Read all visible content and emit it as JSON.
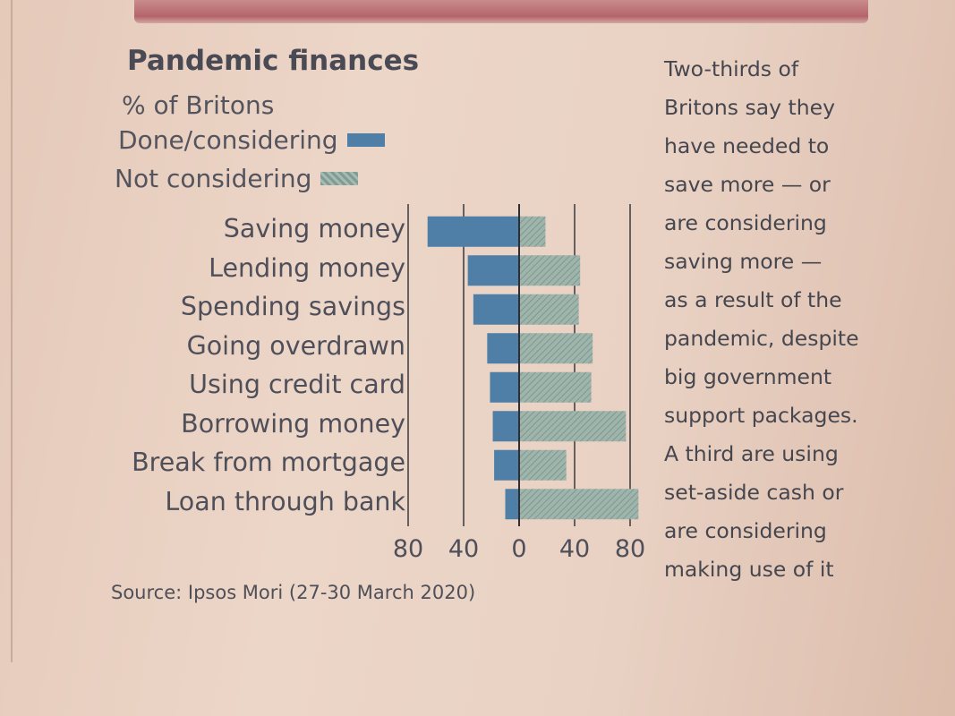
{
  "header": {
    "title": "Pandemic finances",
    "subtitle": "% of Britons"
  },
  "legend": {
    "done": "Done/considering",
    "not": "Not considering"
  },
  "source": "Source: Ipsos Mori (27-30 March 2020)",
  "note": "Two-thirds of\nBritons say they\nhave needed to\nsave more — or\nare considering\nsaving more —\nas a result of the\npandemic, despite\nbig government\nsupport packages.\nA third are using\nset-aside cash or\nare considering\nmaking use of it",
  "colors": {
    "done": "#4f7fa6",
    "not": "#8fa9a1",
    "axis": "#2e2e36",
    "text": "#4f4f5a"
  },
  "chart_data": {
    "type": "bar",
    "orientation": "horizontal-diverging",
    "title": "Pandemic finances",
    "subtitle": "% of Britons",
    "categories": [
      "Saving money",
      "Lending money",
      "Spending savings",
      "Going overdrawn",
      "Using credit card",
      "Borrowing money",
      "Break from mortgage",
      "Loan through bank"
    ],
    "series": [
      {
        "name": "Done/considering",
        "direction": "left",
        "values": [
          66,
          37,
          33,
          23,
          21,
          19,
          18,
          10
        ]
      },
      {
        "name": "Not considering",
        "direction": "right",
        "values": [
          19,
          44,
          43,
          53,
          52,
          77,
          34,
          86
        ]
      }
    ],
    "xlim": [
      -80,
      80
    ],
    "x_ticks": [
      "80",
      "40",
      "0",
      "40",
      "80"
    ],
    "grid": true,
    "legend_position": "top-left"
  }
}
